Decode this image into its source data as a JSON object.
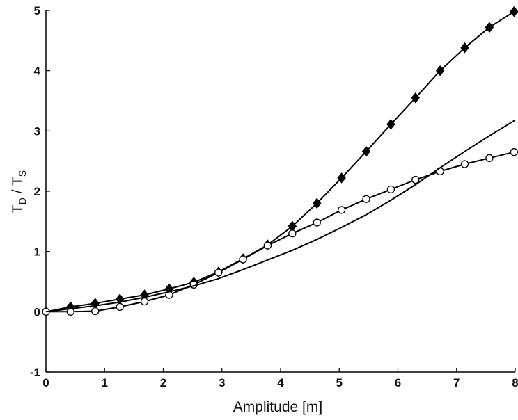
{
  "chart_data": {
    "type": "line",
    "xlabel": "Amplitude [m]",
    "ylabel": {
      "main": "T",
      "sub1": "D",
      "mid": " / T",
      "sub2": "S"
    },
    "xlim": [
      0,
      8
    ],
    "ylim": [
      -1,
      5
    ],
    "xticks": [
      "0",
      "1",
      "2",
      "3",
      "4",
      "5",
      "6",
      "7",
      "8"
    ],
    "yticks": [
      "-1",
      "0",
      "1",
      "2",
      "3",
      "4",
      "5"
    ],
    "grid": false,
    "legend": "none",
    "series": [
      {
        "marker": "filled-diamond",
        "color": "#000000",
        "x": [
          0,
          0.42,
          0.84,
          1.26,
          1.68,
          2.1,
          2.52,
          2.94,
          3.36,
          3.78,
          4.2,
          4.62,
          5.04,
          5.46,
          5.88,
          6.3,
          6.72,
          7.14,
          7.56,
          7.98
        ],
        "y": [
          0.0,
          0.08,
          0.14,
          0.21,
          0.28,
          0.38,
          0.49,
          0.66,
          0.88,
          1.11,
          1.42,
          1.8,
          2.22,
          2.66,
          3.11,
          3.55,
          4.0,
          4.38,
          4.72,
          4.98
        ]
      },
      {
        "marker": "open-circle",
        "color": "#000000",
        "x": [
          0,
          0.42,
          0.84,
          1.26,
          1.68,
          2.1,
          2.52,
          2.94,
          3.36,
          3.78,
          4.2,
          4.62,
          5.04,
          5.46,
          5.88,
          6.3,
          6.72,
          7.14,
          7.56,
          7.98
        ],
        "y": [
          0.0,
          0.0,
          0.01,
          0.08,
          0.17,
          0.28,
          0.45,
          0.65,
          0.87,
          1.1,
          1.3,
          1.48,
          1.69,
          1.87,
          2.03,
          2.19,
          2.33,
          2.45,
          2.55,
          2.65
        ]
      },
      {
        "marker": "none",
        "color": "#000000",
        "x": [
          0,
          0.42,
          0.84,
          1.26,
          1.68,
          2.1,
          2.52,
          2.94,
          3.36,
          3.78,
          4.2,
          4.62,
          5.04,
          5.46,
          5.88,
          6.3,
          6.72,
          7.14,
          7.56,
          8.0
        ],
        "y": [
          0.0,
          0.05,
          0.1,
          0.16,
          0.24,
          0.33,
          0.43,
          0.55,
          0.7,
          0.86,
          1.02,
          1.2,
          1.4,
          1.61,
          1.85,
          2.11,
          2.39,
          2.66,
          2.92,
          3.18
        ]
      }
    ]
  }
}
